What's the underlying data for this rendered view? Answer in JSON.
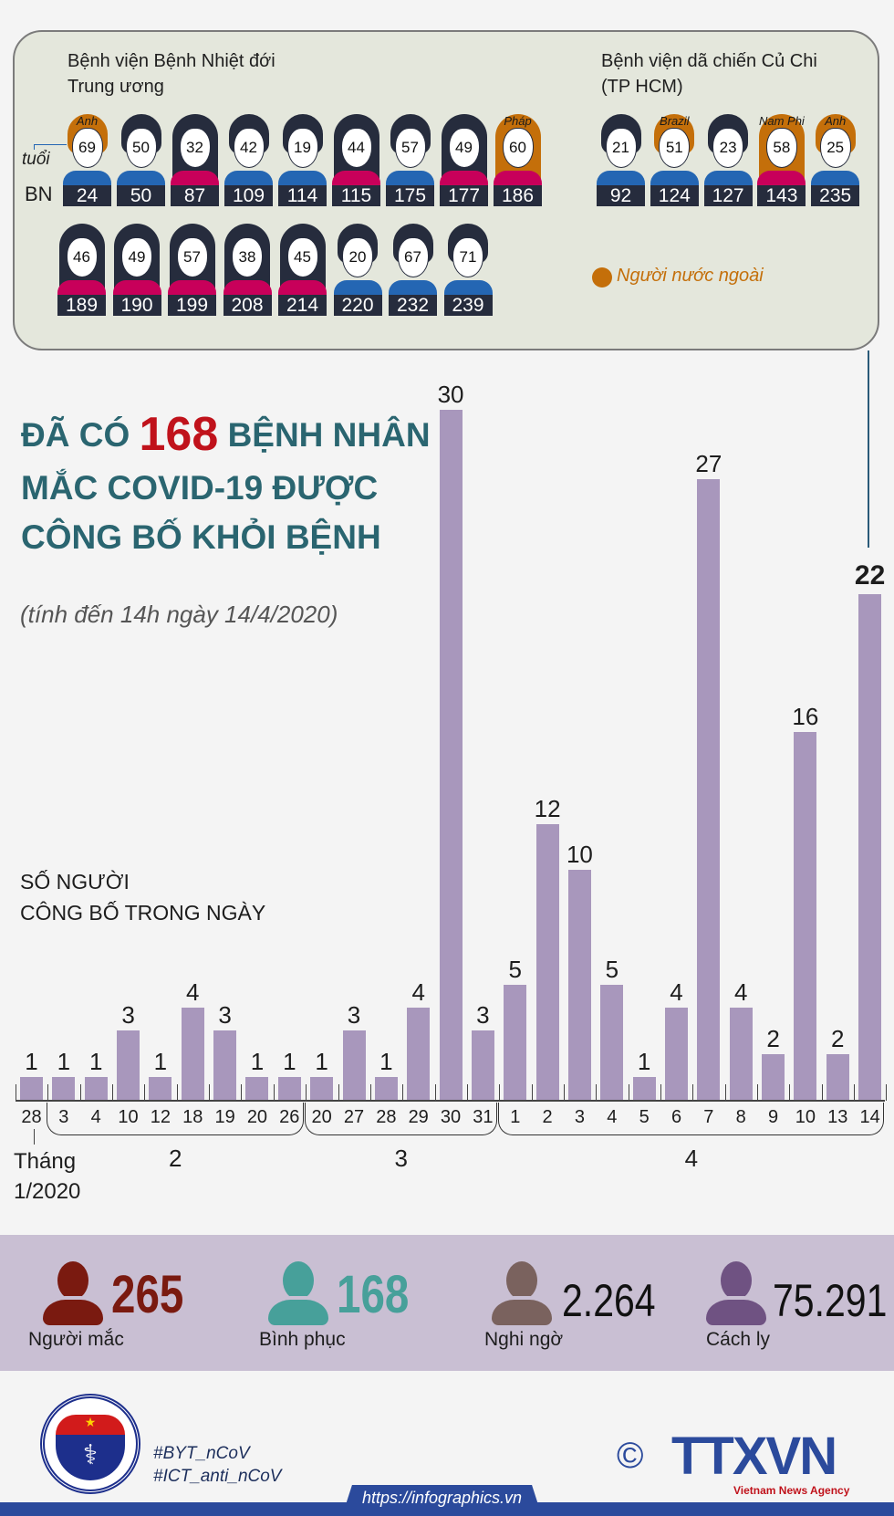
{
  "panel": {
    "left_title": [
      "Bệnh viện Bệnh Nhiệt đới",
      "Trung ương"
    ],
    "right_title": [
      "Bệnh viện dã chiến Củ Chi",
      "(TP HCM)"
    ],
    "age_label": "tuổi",
    "bn_label": "BN",
    "legend": "Người nước ngoài",
    "colors": {
      "male_shirt": "#2466b3",
      "female_shirt": "#c8005a",
      "hair": "#262c3d",
      "foreign_hair": "#c46f0a"
    },
    "row1": [
      {
        "bn": "24",
        "age": "69",
        "gender": "male",
        "country": "Anh"
      },
      {
        "bn": "50",
        "age": "50",
        "gender": "male"
      },
      {
        "bn": "87",
        "age": "32",
        "gender": "female"
      },
      {
        "bn": "109",
        "age": "42",
        "gender": "male"
      },
      {
        "bn": "114",
        "age": "19",
        "gender": "male"
      },
      {
        "bn": "115",
        "age": "44",
        "gender": "female"
      },
      {
        "bn": "175",
        "age": "57",
        "gender": "male"
      },
      {
        "bn": "177",
        "age": "49",
        "gender": "female"
      },
      {
        "bn": "186",
        "age": "60",
        "gender": "female",
        "country": "Pháp"
      }
    ],
    "row2": [
      {
        "bn": "189",
        "age": "46",
        "gender": "female"
      },
      {
        "bn": "190",
        "age": "49",
        "gender": "female"
      },
      {
        "bn": "199",
        "age": "57",
        "gender": "female"
      },
      {
        "bn": "208",
        "age": "38",
        "gender": "female"
      },
      {
        "bn": "214",
        "age": "45",
        "gender": "female"
      },
      {
        "bn": "220",
        "age": "20",
        "gender": "male"
      },
      {
        "bn": "232",
        "age": "67",
        "gender": "male"
      },
      {
        "bn": "239",
        "age": "71",
        "gender": "male"
      }
    ],
    "right": [
      {
        "bn": "92",
        "age": "21",
        "gender": "male"
      },
      {
        "bn": "124",
        "age": "51",
        "gender": "male",
        "country": "Brazil"
      },
      {
        "bn": "127",
        "age": "23",
        "gender": "male"
      },
      {
        "bn": "143",
        "age": "58",
        "gender": "female",
        "country": "Nam Phi"
      },
      {
        "bn": "235",
        "age": "25",
        "gender": "male",
        "country": "Anh"
      }
    ]
  },
  "heading": {
    "pre": "ĐÃ CÓ",
    "number": "168",
    "post": "BỆNH NHÂN",
    "line2": "MẮC COVID-19 ĐƯỢC",
    "line3": "CÔNG BỐ KHỎI BỆNH",
    "subtitle": "(tính đến 14h ngày 14/4/2020)",
    "number_color": "#c0121b",
    "color": "#2a6570"
  },
  "chart_data": {
    "type": "bar",
    "title": "SỐ NGƯỜI CÔNG BỐ TRONG NGÀY",
    "title_lines": [
      "SỐ NGƯỜI",
      "CÔNG BỐ TRONG NGÀY"
    ],
    "categories": [
      "28",
      "3",
      "4",
      "10",
      "12",
      "18",
      "19",
      "20",
      "26",
      "20",
      "27",
      "28",
      "29",
      "30",
      "31",
      "1",
      "2",
      "3",
      "4",
      "5",
      "6",
      "7",
      "8",
      "9",
      "10",
      "13",
      "14"
    ],
    "values": [
      1,
      1,
      1,
      3,
      1,
      4,
      3,
      1,
      1,
      1,
      3,
      1,
      4,
      30,
      3,
      5,
      12,
      10,
      5,
      1,
      4,
      27,
      4,
      2,
      16,
      2,
      22
    ],
    "months": [
      {
        "label": "2",
        "from": 1,
        "to": 8
      },
      {
        "label": "3",
        "from": 9,
        "to": 14
      },
      {
        "label": "4",
        "from": 15,
        "to": 26
      }
    ],
    "first_month_label": [
      "Tháng",
      "1/2020"
    ],
    "highlight_last": true,
    "bar_color": "#a897bc",
    "ylim": [
      0,
      30
    ]
  },
  "stats": [
    {
      "value": "265",
      "label": "Người mắc",
      "color": "#7a1a10",
      "icon": "person-icon"
    },
    {
      "value": "168",
      "label": "Bình phục",
      "color": "#47a09a",
      "icon": "person-icon"
    },
    {
      "value": "2.264",
      "label": "Nghi ngờ",
      "color": "#7a625e",
      "icon": "person-icon"
    },
    {
      "value": "75.291",
      "label": "Cách ly",
      "color": "#6f5282",
      "icon": "person-icon"
    }
  ],
  "footer": {
    "hashtags": [
      "#BYT_nCoV",
      "#ICT_anti_nCoV"
    ],
    "url": "https://infographics.vn",
    "logo_left": "BỘ Y TẾ MINISTRY OF HEALTH",
    "logo_right": "TTXVN",
    "logo_right_sub": "Vietnam News Agency",
    "copyright": "©"
  }
}
